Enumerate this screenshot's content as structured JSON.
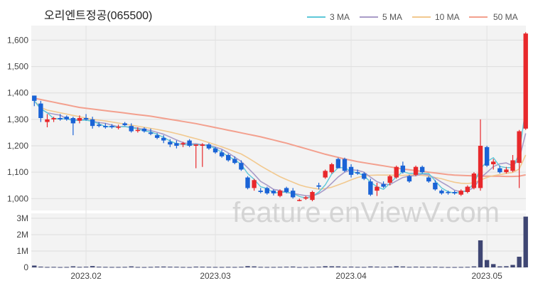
{
  "title": "오리엔트정공(065500)",
  "watermark": "feature.enViewV.com",
  "colors": {
    "up": "#e8282b",
    "down": "#1a63d6",
    "ma3": "#5ec8d8",
    "ma5": "#a99cc8",
    "ma10": "#f2c98f",
    "ma50": "#f3a08e",
    "volume": "#3f4673",
    "panel": "#f3f3f3"
  },
  "chart_data": {
    "type": "candlestick",
    "title": "오리엔트정공(065500)",
    "legend": {
      "position": "top-right",
      "entries": [
        "3 MA",
        "5 MA",
        "10 MA",
        "50 MA"
      ]
    },
    "price_axis": {
      "ticks": [
        1000,
        1100,
        1200,
        1300,
        1400,
        1500,
        1600
      ],
      "tick_labels": [
        "1,000",
        "1,100",
        "1,200",
        "1,300",
        "1,400",
        "1,500",
        "1,600"
      ],
      "range": [
        955,
        1655
      ]
    },
    "volume_axis": {
      "ticks": [
        0,
        1000000,
        2000000,
        3000000
      ],
      "tick_labels": [
        "0",
        "1M",
        "2M",
        "3M"
      ],
      "range": [
        0,
        3300000
      ]
    },
    "x_axis": {
      "tick_labels": [
        "2023.02",
        "2023.03",
        "2023.04",
        "2023.05"
      ],
      "tick_index": [
        8,
        28,
        49,
        70
      ]
    },
    "candles": [
      [
        1390,
        1390,
        1350,
        1370
      ],
      [
        1360,
        1370,
        1290,
        1305
      ],
      [
        1290,
        1320,
        1270,
        1300
      ],
      [
        1300,
        1310,
        1290,
        1305
      ],
      [
        1305,
        1320,
        1295,
        1300
      ],
      [
        1310,
        1315,
        1295,
        1300
      ],
      [
        1305,
        1310,
        1240,
        1285
      ],
      [
        1295,
        1315,
        1285,
        1305
      ],
      [
        1305,
        1320,
        1295,
        1300
      ],
      [
        1300,
        1310,
        1265,
        1275
      ],
      [
        1280,
        1290,
        1270,
        1275
      ],
      [
        1275,
        1285,
        1265,
        1270
      ],
      [
        1275,
        1282,
        1265,
        1270
      ],
      [
        1270,
        1280,
        1262,
        1272
      ],
      [
        1285,
        1290,
        1275,
        1278
      ],
      [
        1275,
        1285,
        1250,
        1255
      ],
      [
        1260,
        1270,
        1250,
        1260
      ],
      [
        1265,
        1270,
        1250,
        1255
      ],
      [
        1250,
        1265,
        1240,
        1245
      ],
      [
        1240,
        1248,
        1225,
        1230
      ],
      [
        1230,
        1240,
        1210,
        1220
      ],
      [
        1215,
        1225,
        1195,
        1205
      ],
      [
        1210,
        1220,
        1190,
        1200
      ],
      [
        1205,
        1215,
        1195,
        1210
      ],
      [
        1220,
        1225,
        1195,
        1200
      ],
      [
        1200,
        1205,
        1115,
        1205
      ],
      [
        1200,
        1210,
        1120,
        1205
      ],
      [
        1205,
        1210,
        1185,
        1190
      ],
      [
        1190,
        1195,
        1170,
        1175
      ],
      [
        1175,
        1185,
        1155,
        1160
      ],
      [
        1165,
        1170,
        1140,
        1145
      ],
      [
        1150,
        1160,
        1130,
        1135
      ],
      [
        1135,
        1145,
        1105,
        1110
      ],
      [
        1080,
        1085,
        1035,
        1040
      ],
      [
        1040,
        1075,
        1030,
        1070
      ],
      [
        1030,
        1040,
        1020,
        1025
      ],
      [
        1040,
        1045,
        1015,
        1020
      ],
      [
        1030,
        1035,
        1012,
        1020
      ],
      [
        1010,
        1035,
        1005,
        1030
      ],
      [
        1040,
        1045,
        1020,
        1025
      ],
      [
        1030,
        1040,
        1000,
        1005
      ],
      [
        995,
        1000,
        990,
        995
      ],
      [
        1000,
        1010,
        995,
        1005
      ],
      [
        995,
        1030,
        990,
        1025
      ],
      [
        1050,
        1060,
        1035,
        1045
      ],
      [
        1080,
        1110,
        1075,
        1105
      ],
      [
        1100,
        1135,
        1095,
        1130
      ],
      [
        1150,
        1155,
        1115,
        1115
      ],
      [
        1150,
        1155,
        1100,
        1105
      ],
      [
        1120,
        1130,
        1080,
        1090
      ],
      [
        1100,
        1110,
        1090,
        1095
      ],
      [
        1095,
        1100,
        1070,
        1075
      ],
      [
        1065,
        1075,
        1010,
        1015
      ],
      [
        1030,
        1060,
        1010,
        1045
      ],
      [
        1055,
        1065,
        1040,
        1045
      ],
      [
        1060,
        1090,
        1050,
        1085
      ],
      [
        1080,
        1125,
        1075,
        1120
      ],
      [
        1125,
        1140,
        1095,
        1100
      ],
      [
        1085,
        1090,
        1060,
        1065
      ],
      [
        1090,
        1125,
        1085,
        1120
      ],
      [
        1120,
        1125,
        1095,
        1100
      ],
      [
        1080,
        1085,
        1060,
        1065
      ],
      [
        1060,
        1070,
        1030,
        1035
      ],
      [
        1030,
        1035,
        1015,
        1020
      ],
      [
        1025,
        1030,
        1015,
        1022
      ],
      [
        1025,
        1030,
        1015,
        1020
      ],
      [
        1015,
        1035,
        1010,
        1030
      ],
      [
        1025,
        1050,
        1020,
        1045
      ],
      [
        1040,
        1100,
        1035,
        1095
      ],
      [
        1040,
        1300,
        1030,
        1200
      ],
      [
        1195,
        1200,
        1120,
        1125
      ],
      [
        1130,
        1150,
        1110,
        1140
      ],
      [
        1115,
        1125,
        1095,
        1100
      ],
      [
        1100,
        1120,
        1095,
        1110
      ],
      [
        1105,
        1165,
        1100,
        1145
      ],
      [
        1135,
        1260,
        1040,
        1255
      ],
      [
        1265,
        1630,
        1260,
        1625
      ]
    ],
    "volume": [
      110000,
      45000,
      25000,
      30000,
      20000,
      25000,
      65000,
      30000,
      40000,
      80000,
      40000,
      30000,
      25000,
      25000,
      30000,
      60000,
      25000,
      20000,
      30000,
      45000,
      50000,
      40000,
      35000,
      25000,
      20000,
      45000,
      40000,
      30000,
      25000,
      25000,
      30000,
      25000,
      35000,
      75000,
      60000,
      30000,
      25000,
      25000,
      30000,
      40000,
      50000,
      20000,
      25000,
      30000,
      40000,
      70000,
      65000,
      60000,
      35000,
      45000,
      30000,
      25000,
      55000,
      45000,
      30000,
      40000,
      70000,
      55000,
      30000,
      40000,
      35000,
      30000,
      40000,
      25000,
      20000,
      20000,
      25000,
      30000,
      60000,
      1650000,
      450000,
      200000,
      60000,
      70000,
      150000,
      650000,
      3100000
    ],
    "ma3": [
      1370,
      1340,
      1325,
      1303,
      1302,
      1302,
      1295,
      1297,
      1297,
      1293,
      1283,
      1273,
      1272,
      1271,
      1273,
      1268,
      1264,
      1256,
      1253,
      1243,
      1232,
      1218,
      1208,
      1205,
      1203,
      1205,
      1203,
      1200,
      1190,
      1175,
      1160,
      1147,
      1130,
      1095,
      1073,
      1045,
      1038,
      1022,
      1023,
      1025,
      1020,
      1008,
      1002,
      1008,
      1025,
      1052,
      1093,
      1117,
      1117,
      1103,
      1097,
      1087,
      1062,
      1045,
      1035,
      1058,
      1083,
      1102,
      1095,
      1095,
      1095,
      1095,
      1067,
      1040,
      1026,
      1021,
      1024,
      1032,
      1057,
      1113,
      1140,
      1155,
      1122,
      1117,
      1118,
      1170,
      1342
    ],
    "ma5": [
      1370,
      1340,
      1325,
      1320,
      1316,
      1302,
      1299,
      1299,
      1299,
      1293,
      1288,
      1285,
      1278,
      1272,
      1273,
      1270,
      1267,
      1262,
      1258,
      1251,
      1244,
      1233,
      1222,
      1212,
      1207,
      1208,
      1204,
      1202,
      1195,
      1187,
      1173,
      1157,
      1141,
      1117,
      1092,
      1065,
      1051,
      1035,
      1031,
      1023,
      1020,
      1015,
      1011,
      1010,
      1019,
      1035,
      1058,
      1082,
      1100,
      1109,
      1107,
      1100,
      1081,
      1064,
      1055,
      1053,
      1067,
      1080,
      1085,
      1087,
      1093,
      1090,
      1077,
      1062,
      1048,
      1032,
      1025,
      1029,
      1042,
      1078,
      1099,
      1121,
      1132,
      1135,
      1124,
      1150,
      1247
    ],
    "ma10": [
      1370,
      1345,
      1335,
      1330,
      1325,
      1320,
      1315,
      1310,
      1305,
      1300,
      1297,
      1294,
      1290,
      1286,
      1282,
      1278,
      1274,
      1270,
      1266,
      1262,
      1257,
      1252,
      1246,
      1240,
      1233,
      1227,
      1220,
      1212,
      1204,
      1196,
      1187,
      1178,
      1169,
      1155,
      1140,
      1124,
      1110,
      1096,
      1083,
      1072,
      1062,
      1052,
      1045,
      1040,
      1036,
      1038,
      1043,
      1052,
      1061,
      1071,
      1080,
      1086,
      1088,
      1089,
      1089,
      1089,
      1088,
      1088,
      1089,
      1090,
      1088,
      1085,
      1080,
      1075,
      1068,
      1062,
      1058,
      1057,
      1060,
      1070,
      1080,
      1087,
      1091,
      1095,
      1099,
      1112,
      1165
    ],
    "ma50": [
      1380,
      1375,
      1370,
      1365,
      1360,
      1355,
      1350,
      1345,
      1342,
      1339,
      1336,
      1333,
      1330,
      1327,
      1324,
      1321,
      1318,
      1315,
      1312,
      1308,
      1304,
      1300,
      1296,
      1292,
      1288,
      1284,
      1279,
      1274,
      1269,
      1264,
      1259,
      1254,
      1249,
      1244,
      1239,
      1234,
      1228,
      1222,
      1216,
      1210,
      1203,
      1196,
      1189,
      1182,
      1175,
      1168,
      1162,
      1156,
      1150,
      1145,
      1140,
      1136,
      1132,
      1128,
      1124,
      1120,
      1116,
      1112,
      1109,
      1106,
      1103,
      1100,
      1097,
      1094,
      1091,
      1089,
      1088,
      1087,
      1086,
      1085,
      1085,
      1085,
      1085,
      1084,
      1084,
      1085,
      1090
    ]
  }
}
